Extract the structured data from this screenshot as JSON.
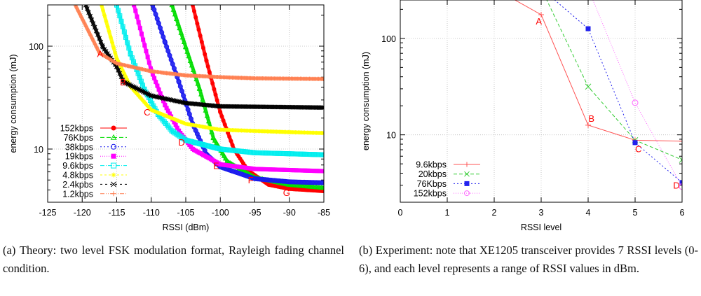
{
  "chart_data": [
    {
      "type": "line",
      "panel": "a",
      "xlabel": "RSSI (dBm)",
      "ylabel": "energy consumption (mJ)",
      "xlim": [
        -125,
        -85
      ],
      "ylim": [
        3.04,
        252
      ],
      "yscale": "log",
      "xticks": [
        -125,
        -120,
        -115,
        -110,
        -105,
        -100,
        -95,
        -90,
        -85
      ],
      "xtick_labels": [
        "-125",
        "-120",
        "-115",
        "-110",
        "-105",
        "-100",
        "-95",
        "-90",
        "-85"
      ],
      "yticks": [
        10,
        100
      ],
      "ytick_labels": [
        "10",
        "100"
      ],
      "grid": true,
      "legend_position": "bottom-left",
      "series": [
        {
          "name": "152kbps",
          "color": "#ff0000",
          "marker": "circle-filled",
          "dash": "",
          "x": [
            -104,
            -102,
            -100,
            -98,
            -96,
            -93,
            -90,
            -85
          ],
          "y": [
            251,
            72,
            22.8,
            9.9,
            6.2,
            4.5,
            4.1,
            3.9
          ]
        },
        {
          "name": "76Kbps",
          "color": "#00dd00",
          "marker": "triangle",
          "dash": "6,3",
          "x": [
            -107,
            -105,
            -103,
            -101,
            -99,
            -95,
            -90,
            -85
          ],
          "y": [
            251,
            98,
            38.5,
            12.8,
            7.6,
            5.3,
            4.5,
            4.2
          ]
        },
        {
          "name": "38kbps",
          "color": "#1a1aee",
          "marker": "circle",
          "dash": "2,3",
          "x": [
            -109.8,
            -108,
            -106,
            -104,
            -102,
            -100,
            -95,
            -90,
            -85
          ],
          "y": [
            251,
            109,
            45,
            17.6,
            8.9,
            6.7,
            5.15,
            4.8,
            4.7
          ]
        },
        {
          "name": "19kbps",
          "color": "#ff00ff",
          "marker": "square-filled",
          "dash": "1,2",
          "x": [
            -112.5,
            -110,
            -108,
            -106,
            -104,
            -100,
            -95,
            -85
          ],
          "y": [
            251,
            58,
            26.7,
            15,
            10,
            7.1,
            6.4,
            6.1
          ]
        },
        {
          "name": "9.6kbps",
          "color": "#00eeee",
          "marker": "square",
          "dash": "6,2,1,2",
          "x": [
            -115,
            -113,
            -111,
            -109,
            -107,
            -105,
            -100,
            -95,
            -85
          ],
          "y": [
            251,
            84,
            38,
            21.7,
            15,
            12.2,
            10,
            9.2,
            8.8
          ]
        },
        {
          "name": "4.8kbps",
          "color": "#ffff00",
          "marker": "star",
          "dash": "3,3",
          "x": [
            -117.2,
            -115,
            -113,
            -110,
            -105,
            -100,
            -90,
            -85
          ],
          "y": [
            251,
            76,
            40.5,
            24,
            17.6,
            15.4,
            14.6,
            14.3
          ]
        },
        {
          "name": "2.4kpbs",
          "color": "#000000",
          "marker": "x",
          "dash": "3,4",
          "x": [
            -119.5,
            -117,
            -115,
            -114,
            -110,
            -105,
            -100,
            -85
          ],
          "y": [
            251,
            98,
            63,
            45,
            33,
            28,
            26,
            25.3
          ]
        },
        {
          "name": "1.2kbps",
          "color": "#ff7f50",
          "marker": "plus",
          "dash": "6,2,1,2,1,2",
          "x": [
            -121,
            -117.5,
            -115,
            -110,
            -105,
            -100,
            -95,
            -85
          ],
          "y": [
            251,
            86,
            68,
            57,
            52,
            50,
            48.7,
            48
          ]
        }
      ],
      "annotations": [
        {
          "text": "A",
          "x": -117.4,
          "y": 85
        },
        {
          "text": "B",
          "x": -114.1,
          "y": 45
        },
        {
          "text": "C",
          "x": -110.6,
          "y": 23
        },
        {
          "text": "D",
          "x": -105.6,
          "y": 11.7
        },
        {
          "text": "E",
          "x": -100.6,
          "y": 6.9
        },
        {
          "text": "F",
          "x": -95.6,
          "y": 5.0
        },
        {
          "text": "G",
          "x": -90.4,
          "y": 3.8
        }
      ]
    },
    {
      "type": "line",
      "panel": "b",
      "xlabel": "RSSI level",
      "ylabel": "energy consumption (mJ)",
      "xlim": [
        0,
        6
      ],
      "ylim": [
        2.0,
        250
      ],
      "yscale": "log",
      "xticks": [
        0,
        1,
        2,
        3,
        4,
        5,
        6
      ],
      "xtick_labels": [
        "0",
        "1",
        "2",
        "3",
        "4",
        "5",
        "6"
      ],
      "yticks": [
        10,
        100
      ],
      "ytick_labels": [
        "10",
        "100"
      ],
      "grid": true,
      "legend_position": "bottom-left",
      "series": [
        {
          "name": "9.6kbps",
          "color": "#ff5555",
          "marker": "plus",
          "dash": "",
          "x": [
            2,
            3,
            4,
            5,
            6
          ],
          "y": [
            330,
            176,
            12.6,
            8.8,
            8.6
          ]
        },
        {
          "name": "20kbps",
          "color": "#33cc33",
          "marker": "x",
          "dash": "5,3",
          "x": [
            3,
            4,
            5,
            6
          ],
          "y": [
            330,
            31.6,
            8.8,
            5.5
          ]
        },
        {
          "name": "76Kbps",
          "color": "#2222ee",
          "marker": "square-filled",
          "dash": "2,3",
          "x": [
            3,
            4,
            5,
            6
          ],
          "y": [
            330,
            126,
            8.3,
            3.2
          ]
        },
        {
          "name": "152kbps",
          "color": "#ff66ff",
          "marker": "circle",
          "dash": "1,2",
          "x": [
            4,
            5,
            6
          ],
          "y": [
            330,
            21.5,
            2.9
          ]
        }
      ],
      "annotations": [
        {
          "text": "A",
          "x": 2.95,
          "y": 152
        },
        {
          "text": "B",
          "x": 4.07,
          "y": 14.9
        },
        {
          "text": "C",
          "x": 5.07,
          "y": 7.2
        },
        {
          "text": "D",
          "x": 5.88,
          "y": 3.0
        }
      ]
    }
  ],
  "captions": {
    "a": "(a) Theory: two level FSK modulation format, Rayleigh fading channel condition.",
    "b": "(b) Experiment: note that XE1205 transceiver provides 7 RSSI levels (0-6), and each level represents a range of RSSI values in dBm."
  }
}
